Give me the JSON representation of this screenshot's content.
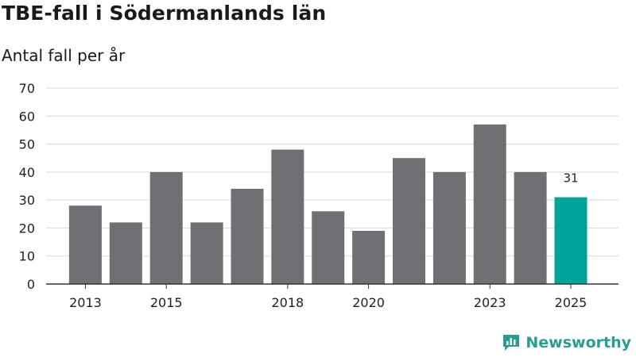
{
  "chart_data": {
    "type": "bar",
    "title": "TBE-fall i Södermanlands län",
    "subtitle": "Antal fall per år",
    "categories": [
      "2013",
      "2014",
      "2015",
      "2016",
      "2017",
      "2018",
      "2019",
      "2020",
      "2021",
      "2022",
      "2023",
      "2024",
      "2025"
    ],
    "values": [
      28,
      22,
      40,
      22,
      34,
      48,
      26,
      19,
      45,
      40,
      57,
      40,
      31
    ],
    "x_tick_labels": [
      "2013",
      "2015",
      "2018",
      "2020",
      "2023",
      "2025"
    ],
    "y_ticks": [
      0,
      10,
      20,
      30,
      40,
      50,
      60,
      70
    ],
    "ylim": [
      0,
      70
    ],
    "xlabel": "",
    "ylabel": "",
    "grid": true,
    "highlight_index": 12,
    "data_labels": [
      {
        "index": 12,
        "text": "31"
      }
    ],
    "colors": {
      "bar": "#706f74",
      "highlight": "#00a398",
      "grid": "#d9d9d9",
      "axis": "#333333"
    }
  },
  "brand": {
    "name": "Newsworthy",
    "color": "#2a9d8f",
    "icon": "newsworthy-logo-icon"
  }
}
